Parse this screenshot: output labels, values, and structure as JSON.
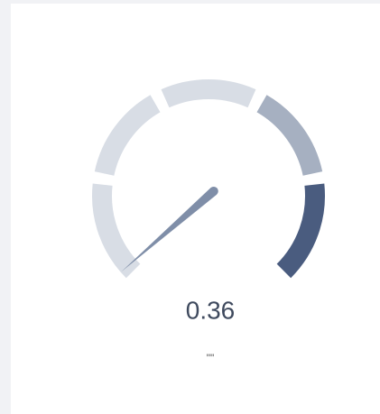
{
  "chart_data": {
    "type": "gauge",
    "value": 0.36,
    "unit": "\"\"",
    "ylim": [
      0,
      25
    ],
    "band_colors": [
      "#d8dde5",
      "#d8dde5",
      "#d8dde5",
      "#a6b0c1",
      "#4a5c7f"
    ],
    "needle_color": "#7f8ea8"
  }
}
